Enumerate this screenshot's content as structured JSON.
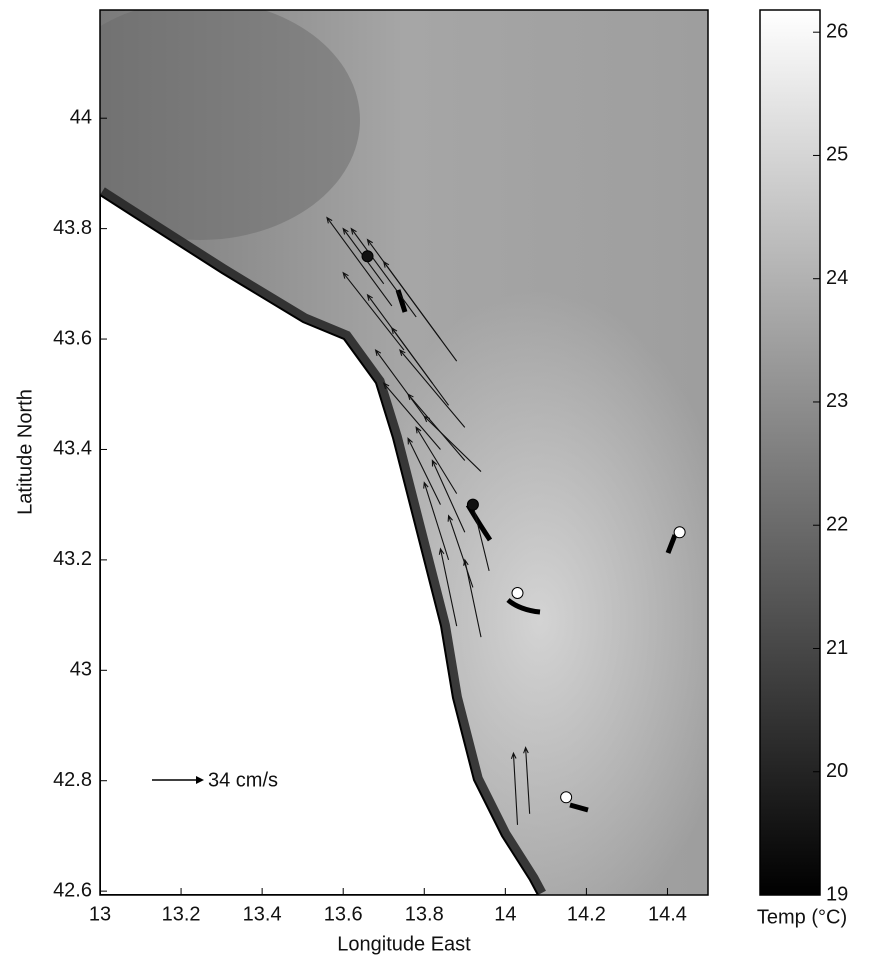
{
  "chart_data": {
    "type": "map",
    "xlabel": "Longitude East",
    "ylabel": "Latitude North",
    "xlim": [
      13,
      14.5
    ],
    "ylim": [
      42.593,
      44.196
    ],
    "xticks": [
      13,
      13.2,
      13.4,
      13.6,
      13.8,
      14,
      14.2,
      14.4
    ],
    "yticks": [
      42.6,
      42.8,
      43,
      43.2,
      43.4,
      43.6,
      43.8,
      44
    ],
    "colorbar": {
      "label": "Temp (°C)",
      "lim": [
        19,
        26.18
      ],
      "ticks": [
        19,
        20,
        21,
        22,
        23,
        24,
        25,
        26
      ]
    },
    "scale_label": "34 cm/s",
    "points": [
      {
        "lon": 13.66,
        "lat": 43.75,
        "color": "#111111"
      },
      {
        "lon": 13.92,
        "lat": 43.3,
        "color": "#111111"
      },
      {
        "lon": 14.03,
        "lat": 43.14,
        "color": "#ffffff"
      },
      {
        "lon": 14.43,
        "lat": 43.25,
        "color": "#ffffff"
      },
      {
        "lon": 14.15,
        "lat": 42.77,
        "color": "#ffffff"
      }
    ],
    "vectors": [
      [
        13.72,
        43.66,
        13.56,
        43.82
      ],
      [
        13.78,
        43.64,
        13.62,
        43.8
      ],
      [
        13.84,
        43.6,
        13.66,
        43.78
      ],
      [
        13.88,
        43.56,
        13.7,
        43.74
      ],
      [
        13.75,
        43.58,
        13.6,
        43.72
      ],
      [
        13.82,
        43.52,
        13.66,
        43.68
      ],
      [
        13.86,
        43.48,
        13.72,
        43.62
      ],
      [
        13.9,
        43.44,
        13.74,
        43.58
      ],
      [
        13.8,
        43.46,
        13.68,
        43.58
      ],
      [
        13.84,
        43.4,
        13.7,
        43.52
      ],
      [
        13.9,
        43.38,
        13.76,
        43.5
      ],
      [
        13.94,
        43.36,
        13.8,
        43.46
      ],
      [
        13.88,
        43.32,
        13.78,
        43.44
      ],
      [
        13.84,
        43.3,
        13.76,
        43.42
      ],
      [
        13.9,
        43.25,
        13.82,
        43.38
      ],
      [
        13.86,
        43.2,
        13.8,
        43.34
      ],
      [
        13.92,
        43.15,
        13.86,
        43.28
      ],
      [
        13.88,
        43.08,
        13.84,
        43.22
      ],
      [
        13.94,
        43.06,
        13.9,
        43.2
      ],
      [
        13.96,
        43.18,
        13.92,
        43.3
      ],
      [
        13.7,
        43.7,
        13.6,
        43.8
      ],
      [
        14.03,
        42.72,
        14.02,
        42.85
      ],
      [
        14.06,
        42.74,
        14.05,
        42.86
      ]
    ]
  }
}
